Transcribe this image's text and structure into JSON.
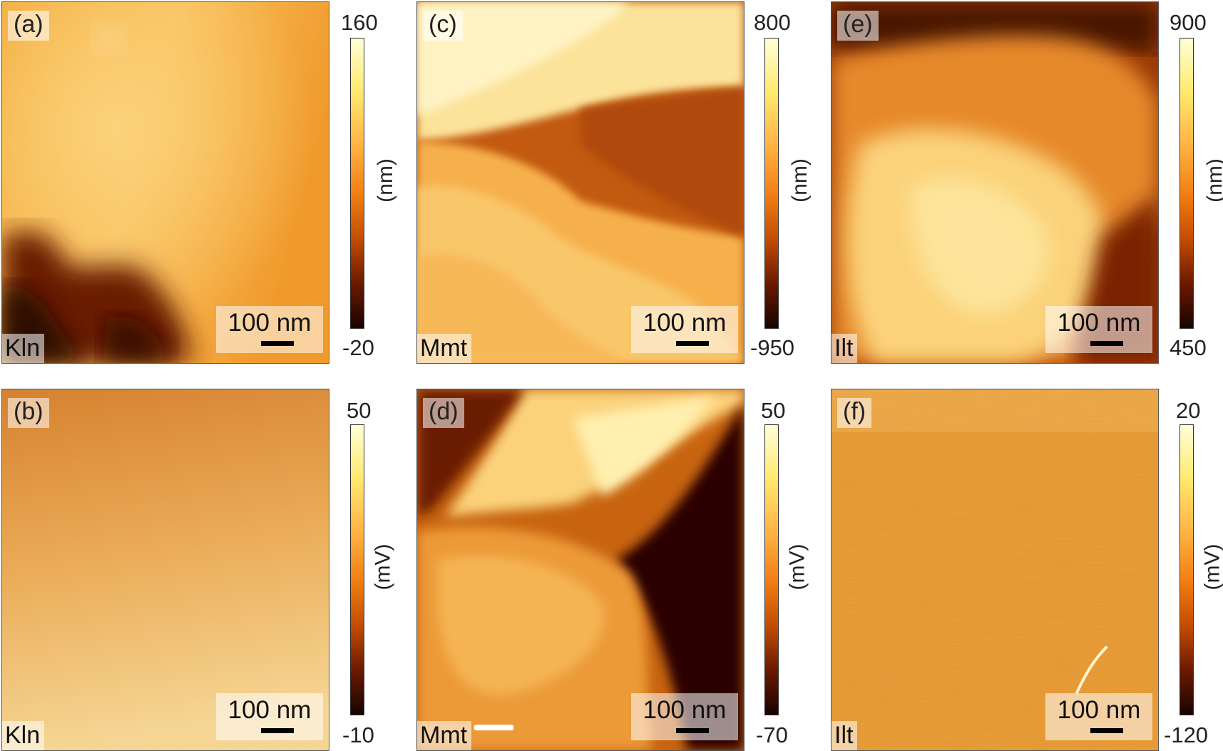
{
  "panels": [
    {
      "tag": "(a)",
      "material": "Kln",
      "scale": "100 nm",
      "cmax": "160",
      "cmin": "-20",
      "unit": "(nm)"
    },
    {
      "tag": "(c)",
      "material": "Mmt",
      "scale": "100 nm",
      "cmax": "800",
      "cmin": "-950",
      "unit": "(nm)"
    },
    {
      "tag": "(e)",
      "material": "Ilt",
      "scale": "100 nm",
      "cmax": "900",
      "cmin": "450",
      "unit": "(nm)"
    },
    {
      "tag": "(b)",
      "material": "Kln",
      "scale": "100 nm",
      "cmax": "50",
      "cmin": "-10",
      "unit": "(mV)"
    },
    {
      "tag": "(d)",
      "material": "Mmt",
      "scale": "100 nm",
      "cmax": "50",
      "cmin": "-70",
      "unit": "(mV)"
    },
    {
      "tag": "(f)",
      "material": "Ilt",
      "scale": "100 nm",
      "cmax": "20",
      "cmin": "-120",
      "unit": "(mV)"
    }
  ]
}
